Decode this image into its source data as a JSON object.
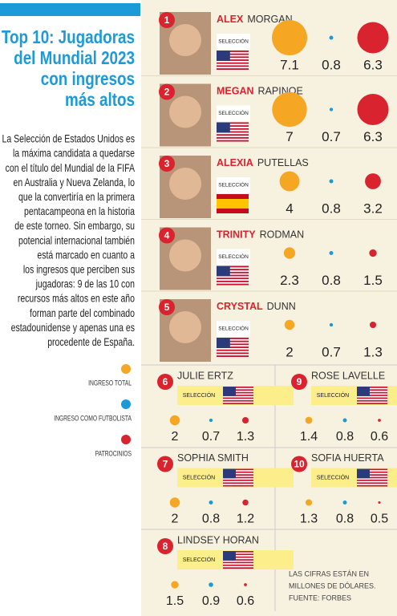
{
  "title": [
    "Top 10: Jugadoras",
    "del Mundial 2023",
    "con ingresos",
    "más altos"
  ],
  "body": [
    "La Selección de Estados Unidos es",
    "la máxima candidata a quedarse",
    "con el título del Mundial de la FIFA",
    "en Australia y Nueva Zelanda, lo",
    "que la convertiría en la primera",
    "pentacampeona en la historia",
    "de este torneo. Sin embargo, su",
    "potencial internacional también",
    "está marcado en cuanto a",
    "los ingresos que perciben sus",
    "jugadoras: 9 de las 10 con",
    "recursos más altos en este año",
    "forman parte del combinado",
    "estadounidense y apenas una es",
    "procedente de España."
  ],
  "legend": [
    "INGRESO TOTAL",
    "INGRESO COMO FUTBOLISTA",
    "PATROCINIOS"
  ],
  "players": [
    {
      "rank": 1,
      "first": "ALEX",
      "last": "MORGAN",
      "team": "SELECCIÓN",
      "total": 7.1,
      "salary": 0.8,
      "sponsors": 6.3
    },
    {
      "rank": 2,
      "first": "MEGAN",
      "last": "RAPINOE",
      "team": "SELECCIÓN",
      "total": 7,
      "salary": 0.7,
      "sponsors": 6.3
    },
    {
      "rank": 3,
      "first": "ALEXIA",
      "last": "PUTELLAS",
      "team": "SELECCIÓN",
      "total": 4,
      "salary": 0.8,
      "sponsors": 3.2
    },
    {
      "rank": 4,
      "first": "TRINITY",
      "last": "RODMAN",
      "team": "SELECCIÓN",
      "total": 2.3,
      "salary": 0.8,
      "sponsors": 1.5
    },
    {
      "rank": 5,
      "first": "CRYSTAL",
      "last": "DUNN",
      "team": "SELECCIÓN",
      "total": 2,
      "salary": 0.7,
      "sponsors": 1.3
    },
    {
      "rank": 6,
      "name": "JULIE ERTZ",
      "team": "SELECCIÓN",
      "total": 2,
      "salary": 0.7,
      "sponsors": 1.3
    },
    {
      "rank": 7,
      "name": "SOPHIA SMITH",
      "team": "SELECCIÓN",
      "total": 2,
      "salary": 0.8,
      "sponsors": 1.2
    },
    {
      "rank": 8,
      "name": "LINDSEY HORAN",
      "team": "SELECCIÓN",
      "total": 1.5,
      "salary": 0.9,
      "sponsors": 0.6
    },
    {
      "rank": 9,
      "name": "ROSE LAVELLE",
      "team": "SELECCIÓN",
      "total": 1.4,
      "salary": 0.8,
      "sponsors": 0.6
    },
    {
      "rank": 10,
      "name": "SOFIA HUERTA",
      "team": "SELECCIÓN",
      "total": 1.3,
      "salary": 0.8,
      "sponsors": 0.5
    }
  ],
  "note": [
    "LAS CIFRAS ESTÁN EN",
    "MILLONES DE DÓLARES.",
    "FUENTE: FORBES"
  ]
}
